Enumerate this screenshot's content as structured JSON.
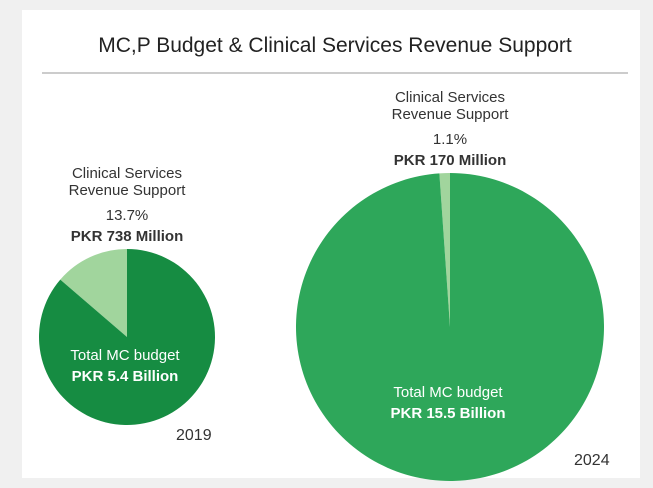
{
  "title": "MC,P Budget & Clinical Services Revenue Support",
  "chart_data": [
    {
      "type": "pie",
      "label": "2019",
      "categories": [
        "Clinical Services Revenue Support",
        "Total MC budget"
      ],
      "values": [
        13.7,
        86.3
      ],
      "value_labels": [
        "13.7%",
        null
      ],
      "amount_labels": [
        "PKR 738 Million",
        "PKR 5.4 Billion"
      ],
      "colors": [
        "#a1d59d",
        "#168c42"
      ]
    },
    {
      "type": "pie",
      "label": "2024",
      "categories": [
        "Clinical Services Revenue Support",
        "Total MC budget"
      ],
      "values": [
        1.1,
        98.9
      ],
      "value_labels": [
        "1.1%",
        null
      ],
      "amount_labels": [
        "PKR 170 Million",
        "PKR 15.5 Billion"
      ],
      "colors": [
        "#a1d59d",
        "#2ea75a"
      ]
    }
  ]
}
